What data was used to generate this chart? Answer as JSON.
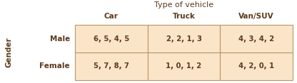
{
  "title_top": "Type of vehicle",
  "col_headers": [
    "Car",
    "Truck",
    "Van/SUV"
  ],
  "row_headers": [
    "Male",
    "Female"
  ],
  "side_label": "Gender",
  "cell_data": [
    [
      "6, 5, 4, 5",
      "2, 2, 1, 3",
      "4, 3, 4, 2"
    ],
    [
      "5, 7, 8, 7",
      "1, 0, 1, 2",
      "4, 2, 0, 1"
    ]
  ],
  "cell_bg": "#FAE5C8",
  "border_color": "#B8956A",
  "text_color": "#5C3A1E",
  "header_color": "#5C3A1E",
  "bg_color": "#FFFFFF",
  "fig_width": 4.16,
  "fig_height": 1.17,
  "dpi": 100
}
